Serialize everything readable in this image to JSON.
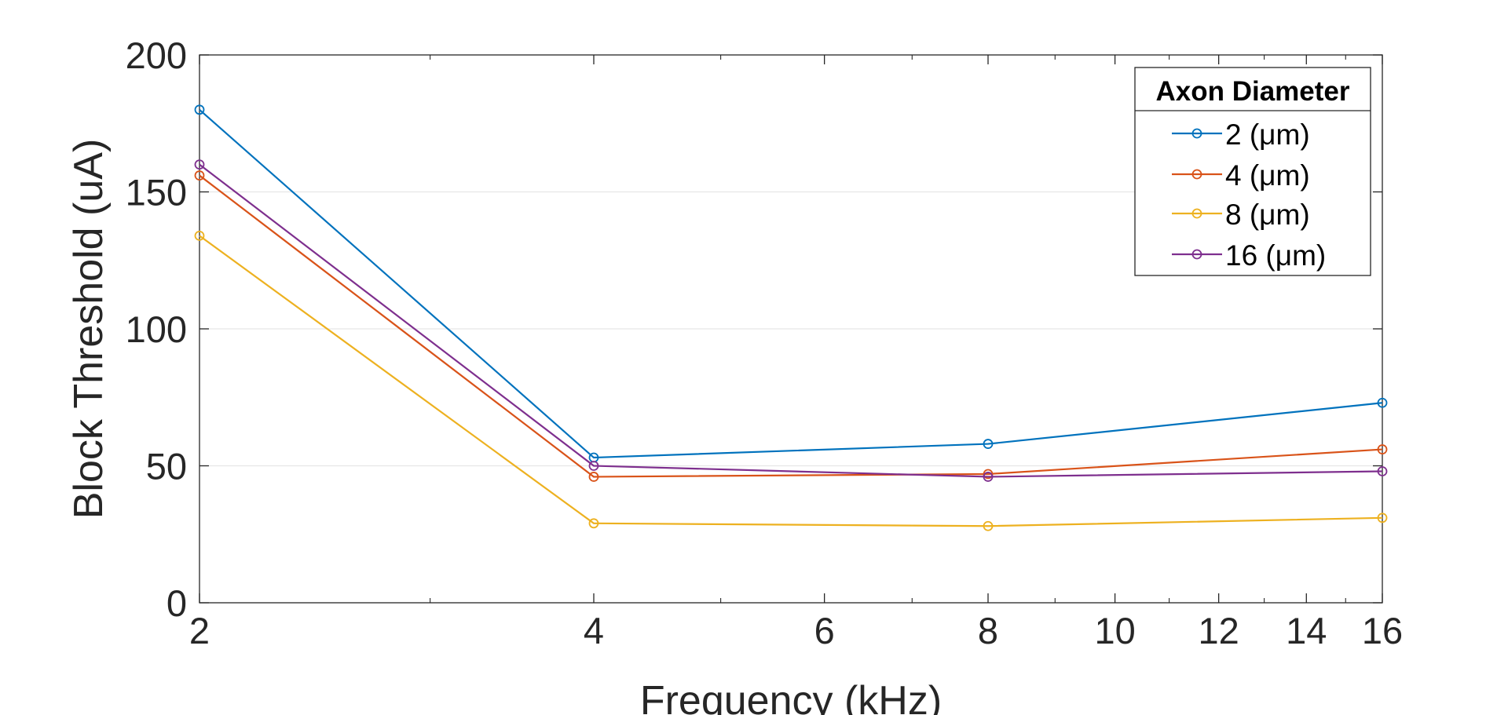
{
  "chart_data": {
    "type": "line",
    "xlabel": "Frequency (kHz)",
    "ylabel": "Block Threshold (uA)",
    "x_scale": "log",
    "x": [
      2,
      4,
      8,
      16
    ],
    "xlim": [
      2,
      16
    ],
    "ylim": [
      0,
      200
    ],
    "x_ticks": [
      2,
      4,
      6,
      8,
      10,
      12,
      14,
      16
    ],
    "y_ticks": [
      0,
      50,
      100,
      150,
      200
    ],
    "grid": "horizontal",
    "legend": {
      "title": "Axon Diameter",
      "placement": "top-right"
    },
    "series": [
      {
        "name": "2 (μm)",
        "color": "#0072BD",
        "values": [
          180,
          53,
          58,
          73
        ]
      },
      {
        "name": "4 (μm)",
        "color": "#D95319",
        "values": [
          156,
          46,
          47,
          56
        ]
      },
      {
        "name": "8 (μm)",
        "color": "#EDB120",
        "values": [
          134,
          29,
          28,
          31
        ]
      },
      {
        "name": "16 (μm)",
        "color": "#7E2F8E",
        "values": [
          160,
          50,
          46,
          48
        ]
      }
    ]
  }
}
